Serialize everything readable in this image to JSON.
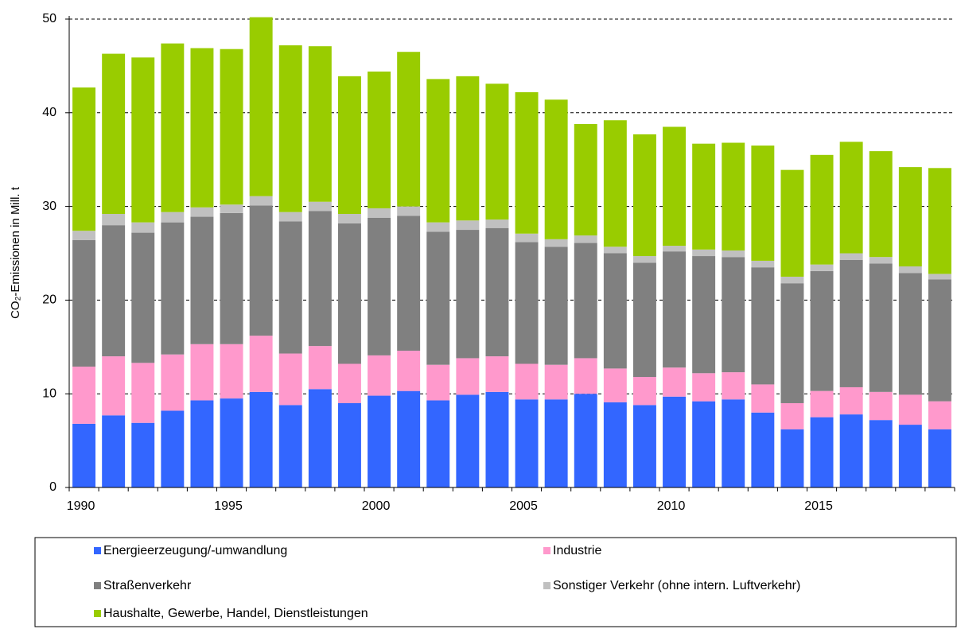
{
  "chart_data": {
    "type": "stacked_bar",
    "ylabel": "CO₂-Emissionen in Mill. t",
    "categories": [
      "1990",
      null,
      null,
      null,
      null,
      "1995",
      null,
      null,
      null,
      null,
      "2000",
      null,
      null,
      null,
      null,
      "2005",
      null,
      null,
      null,
      null,
      "2010",
      null,
      null,
      null,
      null,
      "2015",
      null,
      null,
      null,
      null
    ],
    "series": [
      {
        "name": "Energieerzeugung/-umwandlung",
        "color": "#3366ff",
        "values": [
          6.8,
          7.7,
          6.9,
          8.2,
          9.3,
          9.5,
          10.2,
          8.8,
          10.5,
          9.0,
          9.8,
          10.3,
          9.3,
          9.9,
          10.2,
          9.4,
          9.4,
          10.0,
          9.1,
          8.8,
          9.7,
          9.2,
          9.4,
          8.0,
          6.2,
          7.5,
          7.8,
          7.2,
          6.7,
          6.2
        ]
      },
      {
        "name": "Industrie",
        "color": "#ff99cc",
        "values": [
          6.1,
          6.3,
          6.4,
          6.0,
          6.0,
          5.8,
          6.0,
          5.5,
          4.6,
          4.2,
          4.3,
          4.3,
          3.8,
          3.9,
          3.8,
          3.8,
          3.7,
          3.8,
          3.6,
          3.0,
          3.1,
          3.0,
          2.9,
          3.0,
          2.8,
          2.8,
          2.9,
          3.0,
          3.2,
          3.0
        ]
      },
      {
        "name": "Straßenverkehr",
        "color": "#808080",
        "values": [
          13.5,
          14.0,
          13.9,
          14.1,
          13.6,
          14.0,
          13.9,
          14.1,
          14.4,
          15.0,
          14.7,
          14.4,
          14.2,
          13.7,
          13.7,
          13.0,
          12.6,
          12.3,
          12.3,
          12.2,
          12.4,
          12.5,
          12.3,
          12.5,
          12.8,
          12.8,
          13.6,
          13.7,
          13.0,
          13.0
        ]
      },
      {
        "name": "Sonstiger Verkehr (ohne intern. Luftverkehr)",
        "color": "#c0c0c0",
        "values": [
          1.0,
          1.2,
          1.1,
          1.1,
          1.0,
          0.9,
          1.0,
          1.0,
          1.0,
          1.0,
          1.0,
          1.0,
          1.0,
          1.0,
          0.9,
          0.9,
          0.8,
          0.8,
          0.7,
          0.7,
          0.6,
          0.7,
          0.7,
          0.7,
          0.7,
          0.7,
          0.7,
          0.7,
          0.7,
          0.6
        ]
      },
      {
        "name": "Haushalte, Gewerbe, Handel, Dienstleistungen",
        "color": "#99cc00",
        "values": [
          15.3,
          17.1,
          17.6,
          18.0,
          17.0,
          16.6,
          19.1,
          17.8,
          16.6,
          14.7,
          14.6,
          16.5,
          15.3,
          15.4,
          14.5,
          15.1,
          14.9,
          11.9,
          13.5,
          13.0,
          12.7,
          11.3,
          11.5,
          12.3,
          11.4,
          11.7,
          11.9,
          11.3,
          10.6,
          11.3
        ]
      }
    ],
    "ylim": [
      0,
      50
    ],
    "yticks": [
      0,
      10,
      20,
      30,
      40,
      50
    ],
    "grid": true,
    "legend": "bottom"
  }
}
